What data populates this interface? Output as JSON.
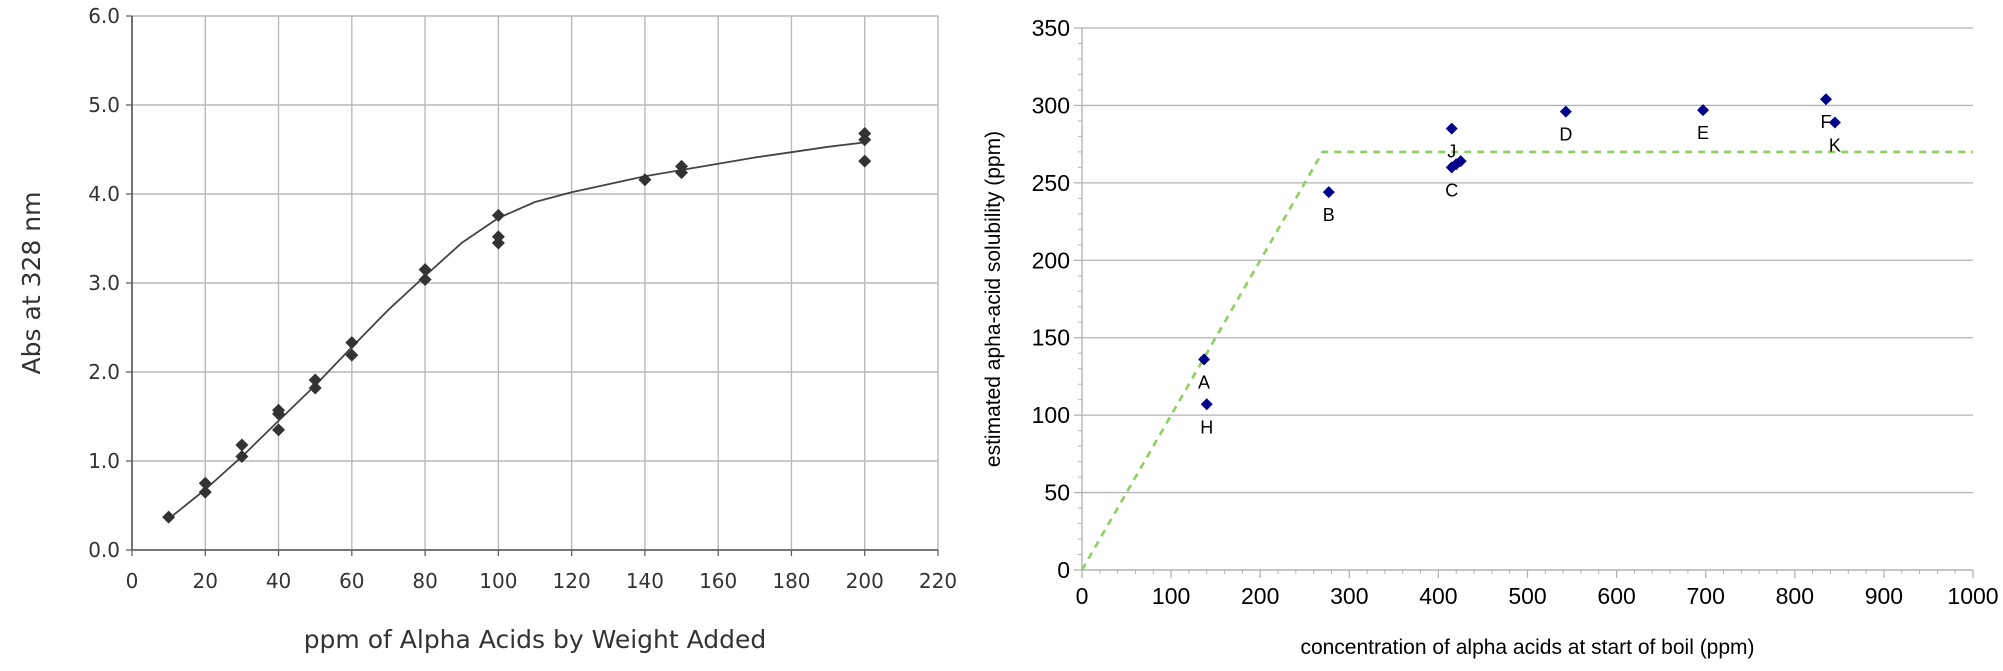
{
  "chart_data": [
    {
      "type": "scatter",
      "title": "",
      "xlabel": "ppm of Alpha Acids by Weight Added",
      "ylabel": "Abs at 328 nm",
      "xlim": [
        0,
        220
      ],
      "ylim": [
        0.0,
        6.0
      ],
      "x_ticks": [
        "0",
        "20",
        "40",
        "60",
        "80",
        "100",
        "120",
        "140",
        "160",
        "180",
        "200",
        "220"
      ],
      "y_ticks": [
        "0.0",
        "1.0",
        "2.0",
        "3.0",
        "4.0",
        "5.0",
        "6.0"
      ],
      "grid": true,
      "legend": "none",
      "marker_color": "#333333",
      "series": [
        {
          "marker": "diamond",
          "x": [
            10,
            20,
            20,
            30,
            30,
            40,
            40,
            40,
            50,
            50,
            60,
            60,
            80,
            80,
            100,
            100,
            100,
            140,
            150,
            150,
            200,
            200,
            200
          ],
          "y": [
            0.37,
            0.65,
            0.75,
            1.05,
            1.18,
            1.35,
            1.53,
            1.57,
            1.82,
            1.91,
            2.19,
            2.33,
            3.04,
            3.15,
            3.45,
            3.52,
            3.76,
            4.16,
            4.24,
            4.31,
            4.37,
            4.61,
            4.68
          ]
        },
        {
          "type": "line",
          "role": "smooth trend curve",
          "x": [
            10,
            20,
            30,
            40,
            50,
            60,
            70,
            80,
            90,
            100,
            110,
            120,
            130,
            140,
            150,
            160,
            170,
            180,
            190,
            200
          ],
          "y": [
            0.35,
            0.68,
            1.05,
            1.45,
            1.85,
            2.28,
            2.7,
            3.08,
            3.45,
            3.73,
            3.91,
            4.02,
            4.11,
            4.2,
            4.27,
            4.34,
            4.41,
            4.47,
            4.53,
            4.58
          ]
        }
      ]
    },
    {
      "type": "scatter",
      "title": "",
      "xlabel": "concentration of alpha acids at start of boil (ppm)",
      "ylabel": "estimated apha-acid solubility (ppm)",
      "xlim": [
        0,
        1000
      ],
      "ylim": [
        0,
        350
      ],
      "x_ticks": [
        "0",
        "100",
        "200",
        "300",
        "400",
        "500",
        "600",
        "700",
        "800",
        "900",
        "1000"
      ],
      "y_ticks": [
        "0",
        "50",
        "100",
        "150",
        "200",
        "250",
        "300",
        "350"
      ],
      "grid": "horizontal",
      "legend": "none",
      "marker_color": "#00008b",
      "points": [
        {
          "label": "A",
          "x": 137,
          "y": 136
        },
        {
          "label": "H",
          "x": 140,
          "y": 107
        },
        {
          "label": "B",
          "x": 277,
          "y": 244
        },
        {
          "label": "J",
          "x": 415,
          "y": 285
        },
        {
          "label": "C",
          "x": 415,
          "y": 260
        },
        {
          "label": "",
          "x": 420,
          "y": 262
        },
        {
          "label": "",
          "x": 425,
          "y": 264
        },
        {
          "label": "D",
          "x": 543,
          "y": 296
        },
        {
          "label": "E",
          "x": 697,
          "y": 297
        },
        {
          "label": "F",
          "x": 835,
          "y": 304
        },
        {
          "label": "K",
          "x": 845,
          "y": 289
        }
      ],
      "reference_line": {
        "style": "dashed",
        "color": "#8fcf5f",
        "x": [
          0,
          270,
          1000
        ],
        "y": [
          0,
          270,
          270
        ]
      }
    }
  ]
}
